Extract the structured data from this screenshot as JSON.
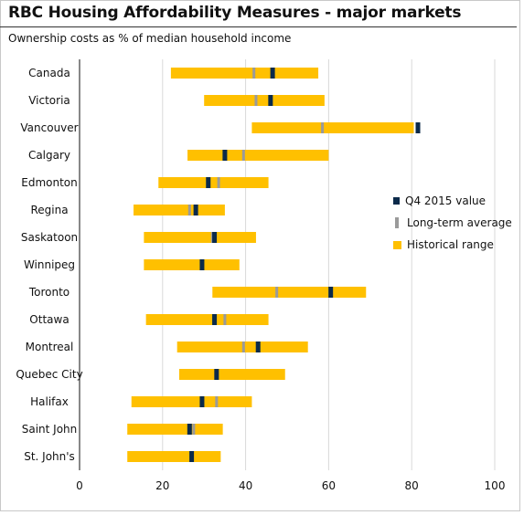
{
  "title": "RBC Housing Affordability Measures - major markets",
  "subtitle": "Ownership costs as % of median household income",
  "legend": {
    "q4": "Q4 2015 value",
    "lt": "Long-term average",
    "hr": "Historical range"
  },
  "colors": {
    "range": "#ffc000",
    "q4": "#0b2a4a",
    "lt": "#9a9a9a",
    "grid": "#d9d9d9"
  },
  "chart_data": {
    "type": "bar",
    "subtype": "floating-range with markers",
    "xlim": [
      0,
      100
    ],
    "xticks": [
      0,
      20,
      40,
      60,
      80,
      100
    ],
    "grid": true,
    "legend_position": "right",
    "series_names": [
      "Q4 2015 value",
      "Long-term average",
      "Historical range"
    ],
    "categories": [
      "Canada",
      "Victoria",
      "Vancouver",
      "Calgary",
      "Edmonton",
      "Regina",
      "Saskatoon",
      "Winnipeg",
      "Toronto",
      "Ottawa",
      "Montreal",
      "Quebec City",
      "Halifax",
      "Saint John",
      "St. John's"
    ],
    "range_low": [
      22,
      30,
      41.5,
      26,
      19,
      13,
      15.5,
      15.5,
      32,
      16,
      23.5,
      24,
      12.5,
      11.5,
      11.5
    ],
    "range_high": [
      57.5,
      59,
      80.5,
      60,
      45.5,
      35,
      42.5,
      38.5,
      69,
      45.5,
      55,
      49.5,
      41.5,
      34.5,
      34
    ],
    "q4_2015": [
      46.5,
      46,
      81.5,
      35,
      31,
      28,
      32.5,
      29.5,
      60.5,
      32.5,
      43,
      33,
      29.5,
      26.5,
      27
    ],
    "long_term_avg": [
      42,
      42.5,
      58.5,
      39.5,
      33.5,
      26.5,
      32,
      29.5,
      47.5,
      35,
      39.5,
      33,
      33,
      27.5,
      27
    ]
  }
}
